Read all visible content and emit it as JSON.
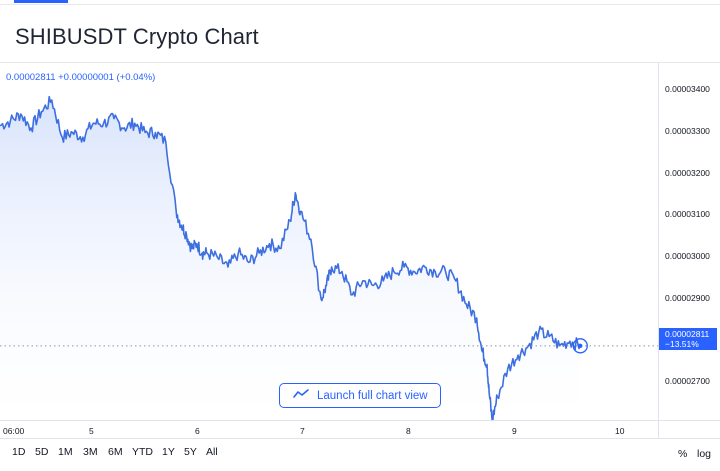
{
  "title": "SHIBUSDT Crypto Chart",
  "price_line_label": "0.00002811 +0.00000001 (+0.04%)",
  "current_price": {
    "value": "0.00002811",
    "change": "−13.51%"
  },
  "launch_button_label": "Launch full chart view",
  "y_ticks": [
    "0.00003400",
    "0.00003300",
    "0.00003200",
    "0.00003100",
    "0.00003000",
    "0.00002900",
    "0.00002700"
  ],
  "x_ticks": [
    "06:00",
    "5",
    "6",
    "7",
    "8",
    "9",
    "10"
  ],
  "ranges": [
    "1D",
    "5D",
    "1M",
    "3M",
    "6M",
    "YTD",
    "1Y",
    "5Y",
    "All"
  ],
  "right_toggles": [
    "%",
    "log"
  ],
  "colors": {
    "accent": "#2962ff",
    "line": "#3d6fe0",
    "fill_top": "#d6e2fb"
  },
  "chart_data": {
    "type": "area",
    "x": [
      4.0,
      4.1,
      4.2,
      4.3,
      4.4,
      4.5,
      4.6,
      4.7,
      4.8,
      4.9,
      5.0,
      5.1,
      5.2,
      5.3,
      5.4,
      5.5,
      5.6,
      5.7,
      5.75,
      5.8,
      5.85,
      5.9,
      5.95,
      6.0,
      6.1,
      6.2,
      6.3,
      6.4,
      6.5,
      6.6,
      6.7,
      6.8,
      6.85,
      6.9,
      7.0,
      7.1,
      7.15,
      7.2,
      7.3,
      7.4,
      7.5,
      7.6,
      7.7,
      7.8,
      7.9,
      8.0,
      8.1,
      8.2,
      8.3,
      8.4,
      8.5,
      8.6,
      8.65,
      8.7,
      8.72,
      8.75,
      8.8,
      8.9,
      9.0,
      9.1,
      9.2,
      9.3,
      9.4,
      9.5,
      9.6
    ],
    "values": [
      3.285e-05,
      3.295e-05,
      3.31e-05,
      3.28e-05,
      3.315e-05,
      3.34e-05,
      3.26e-05,
      3.27e-05,
      3.26e-05,
      3.29e-05,
      3.29e-05,
      3.3e-05,
      3.28e-05,
      3.29e-05,
      3.27e-05,
      3.27e-05,
      3.25e-05,
      3.1e-05,
      3.07e-05,
      3.05e-05,
      3.02e-05,
      3.03e-05,
      3.01e-05,
      3.01e-05,
      3e-05,
      2.98e-05,
      3.01e-05,
      2.99e-05,
      3.01e-05,
      3.03e-05,
      3.02e-05,
      3.08e-05,
      3.14e-05,
      3.1e-05,
      3.04e-05,
      2.91e-05,
      2.94e-05,
      2.98e-05,
      2.97e-05,
      2.92e-05,
      2.95e-05,
      2.94e-05,
      2.95e-05,
      2.97e-05,
      2.98e-05,
      2.97e-05,
      2.98e-05,
      2.97e-05,
      2.97e-05,
      2.95e-05,
      2.9e-05,
      2.87e-05,
      2.8e-05,
      2.77e-05,
      2.71e-05,
      2.65e-05,
      2.7e-05,
      2.76e-05,
      2.79e-05,
      2.81e-05,
      2.84e-05,
      2.83e-05,
      2.81e-05,
      2.82e-05,
      2.81e-05
    ],
    "ylim": [
      2.65e-05,
      3.42e-05
    ],
    "xlim": [
      4.0,
      10.35
    ],
    "grid": false
  }
}
